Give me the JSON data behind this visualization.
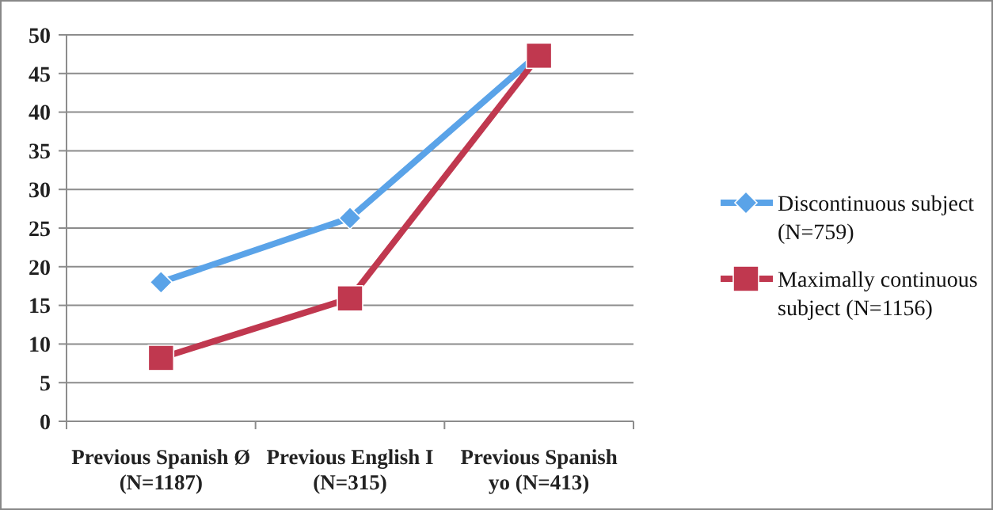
{
  "chart_data": {
    "type": "line",
    "categories": [
      "Previous Spanish Ø (N=1187)",
      "Previous English I (N=315)",
      "Previous Spanish yo (N=413)"
    ],
    "series": [
      {
        "name": "Discontinuous subject (N=759)",
        "color": "#5aa3e8",
        "values": [
          18,
          26.3,
          47.6
        ],
        "marker": "diamond"
      },
      {
        "name": "Maximally continuous subject (N=1156)",
        "color": "#c0384f",
        "values": [
          8.2,
          15.9,
          47.3
        ],
        "marker": "square"
      }
    ],
    "ylim": [
      0,
      50
    ],
    "yticks": [
      0,
      5,
      10,
      15,
      20,
      25,
      30,
      35,
      40,
      45,
      50
    ],
    "grid": "y",
    "legend": "right"
  }
}
